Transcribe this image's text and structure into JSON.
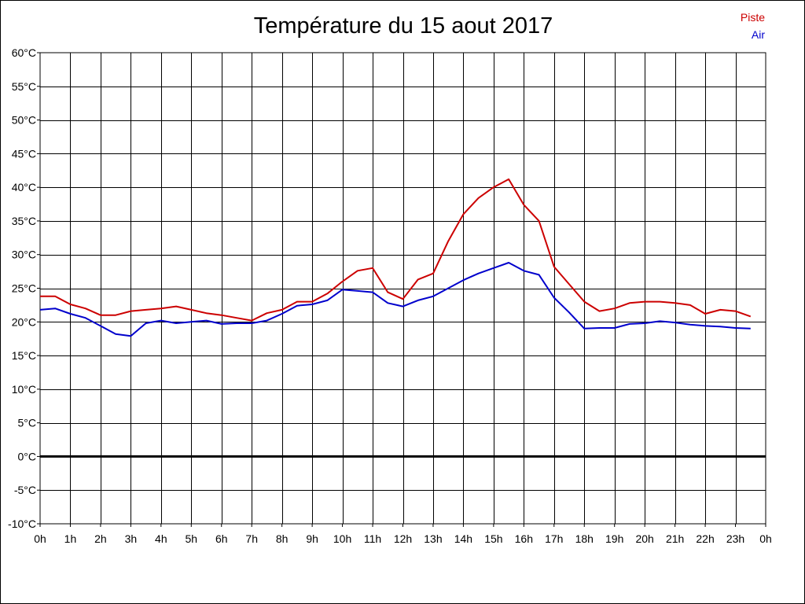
{
  "chart_data": {
    "type": "line",
    "title": "Température du 15 aout 2017",
    "xlabel": "",
    "ylabel": "",
    "x_tick_labels": [
      "0h",
      "1h",
      "2h",
      "3h",
      "4h",
      "5h",
      "6h",
      "7h",
      "8h",
      "9h",
      "10h",
      "11h",
      "12h",
      "13h",
      "14h",
      "15h",
      "16h",
      "17h",
      "18h",
      "19h",
      "20h",
      "21h",
      "22h",
      "23h",
      "0h"
    ],
    "y_tick_labels": [
      "60°C",
      "55°C",
      "50°C",
      "45°C",
      "40°C",
      "35°C",
      "30°C",
      "25°C",
      "20°C",
      "15°C",
      "10°C",
      "5°C",
      "0°C",
      "-5°C",
      "-10°C"
    ],
    "xlim": [
      0,
      24
    ],
    "ylim": [
      -10,
      60
    ],
    "grid": true,
    "zero_line": true,
    "legend_position": "top-right",
    "x": [
      0,
      0.5,
      1,
      1.5,
      2,
      2.5,
      3,
      3.5,
      4,
      4.5,
      5,
      5.5,
      6,
      6.5,
      7,
      7.5,
      8,
      8.5,
      9,
      9.5,
      10,
      10.5,
      11,
      11.5,
      12,
      12.5,
      13,
      13.5,
      14,
      14.5,
      15,
      15.5,
      16,
      16.5,
      17,
      17.5,
      18,
      18.5,
      19,
      19.5,
      20,
      20.5,
      21,
      21.5,
      22,
      22.5,
      23,
      23.5
    ],
    "series": [
      {
        "name": "Piste",
        "color": "#cc0000",
        "values": [
          23.8,
          23.8,
          22.6,
          22.0,
          21.0,
          21.0,
          21.6,
          21.8,
          22.0,
          22.3,
          21.8,
          21.3,
          21.0,
          20.6,
          20.2,
          21.3,
          21.8,
          23.0,
          23.0,
          24.2,
          26.0,
          27.6,
          28.0,
          24.4,
          23.4,
          26.3,
          27.2,
          32.0,
          36.0,
          38.4,
          40.0,
          41.2,
          37.4,
          35.0,
          28.2,
          25.6,
          23.0,
          21.6,
          22.0,
          22.8,
          23.0,
          23.0,
          22.8,
          22.5,
          21.2,
          21.8,
          21.6,
          20.8
        ]
      },
      {
        "name": "Air",
        "color": "#0000cc",
        "values": [
          21.8,
          22.0,
          21.2,
          20.6,
          19.4,
          18.2,
          17.9,
          19.8,
          20.2,
          19.8,
          20.0,
          20.2,
          19.7,
          19.8,
          19.8,
          20.2,
          21.2,
          22.4,
          22.6,
          23.2,
          24.8,
          24.6,
          24.4,
          22.8,
          22.3,
          23.2,
          23.8,
          25.0,
          26.2,
          27.2,
          28.0,
          28.8,
          27.6,
          27.0,
          23.6,
          21.4,
          19.0,
          19.1,
          19.1,
          19.7,
          19.8,
          20.1,
          19.9,
          19.6,
          19.4,
          19.3,
          19.1,
          19.0
        ]
      }
    ]
  },
  "colors": {
    "grid": "#000000",
    "zero_line": "#000000",
    "background": "#ffffff"
  }
}
